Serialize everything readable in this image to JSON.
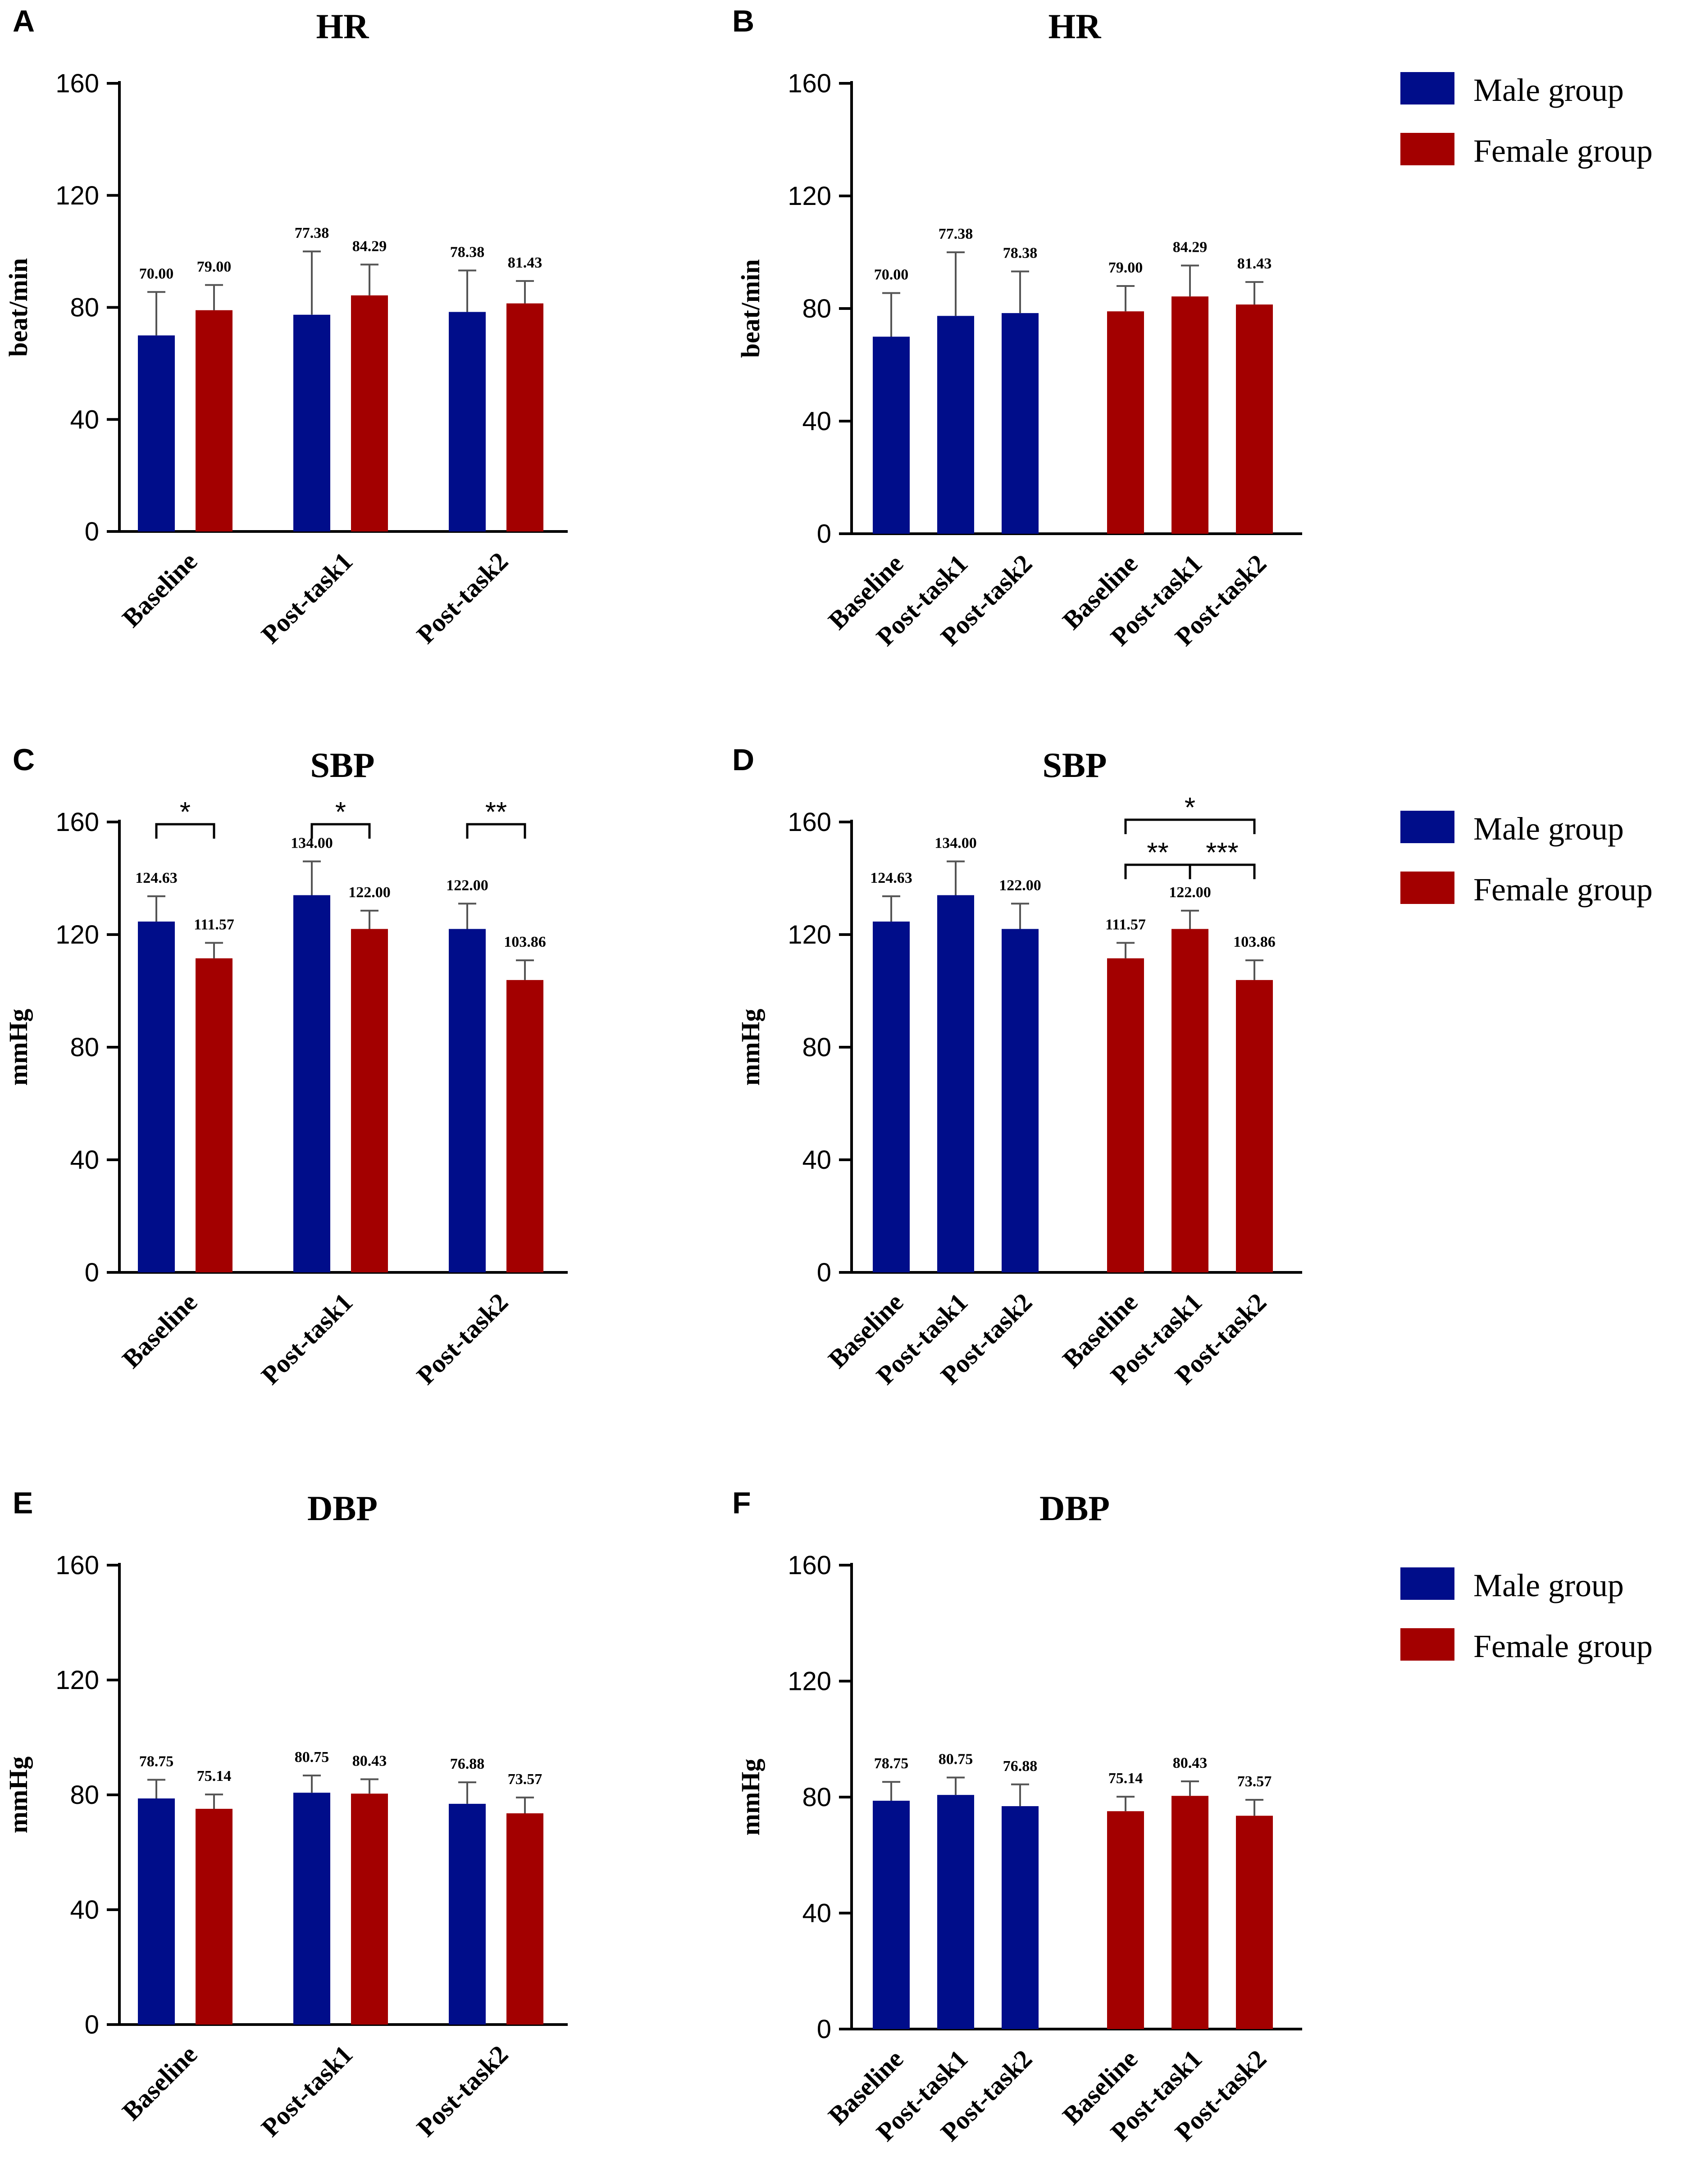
{
  "colors": {
    "male": "#000d8a",
    "female": "#a30000"
  },
  "legend": {
    "male": "Male group",
    "female": "Female group"
  },
  "chart_data": [
    {
      "id": "A",
      "panel_label": "A",
      "title": "HR",
      "type": "bar",
      "layout": "grouped",
      "ylabel": "beat/min",
      "ylim": [
        0,
        160
      ],
      "yticks": [
        0,
        40,
        80,
        120,
        160
      ],
      "categories": [
        "Baseline",
        "Post-task1",
        "Post-task2"
      ],
      "series": [
        {
          "name": "Male group",
          "values": [
            70.0,
            77.38,
            78.38
          ],
          "errors": [
            15.5,
            22.6,
            14.8
          ],
          "labels": [
            "70.00",
            "77.38",
            "78.38"
          ]
        },
        {
          "name": "Female group",
          "values": [
            79.0,
            84.29,
            81.43
          ],
          "errors": [
            9.0,
            11.0,
            8.0
          ],
          "labels": [
            "79.00",
            "84.29",
            "81.43"
          ]
        }
      ],
      "brackets": []
    },
    {
      "id": "B",
      "panel_label": "B",
      "title": "HR",
      "type": "bar",
      "layout": "by-group",
      "ylabel": "beat/min",
      "ylim": [
        0,
        160
      ],
      "yticks": [
        0,
        40,
        80,
        120,
        160
      ],
      "categories": [
        "Baseline",
        "Post-task1",
        "Post-task2"
      ],
      "series": [
        {
          "name": "Male group",
          "values": [
            70.0,
            77.38,
            78.38
          ],
          "errors": [
            15.5,
            22.6,
            14.8
          ],
          "labels": [
            "70.00",
            "77.38",
            "78.38"
          ]
        },
        {
          "name": "Female group",
          "values": [
            79.0,
            84.29,
            81.43
          ],
          "errors": [
            9.0,
            11.0,
            8.0
          ],
          "labels": [
            "79.00",
            "84.29",
            "81.43"
          ]
        }
      ],
      "brackets": []
    },
    {
      "id": "C",
      "panel_label": "C",
      "title": "SBP",
      "type": "bar",
      "layout": "grouped",
      "ylabel": "mmHg",
      "ylim": [
        0,
        160
      ],
      "yticks": [
        0,
        40,
        80,
        120,
        160
      ],
      "categories": [
        "Baseline",
        "Post-task1",
        "Post-task2"
      ],
      "series": [
        {
          "name": "Male group",
          "values": [
            124.63,
            134.0,
            122.0
          ],
          "errors": [
            9.0,
            12.0,
            9.0
          ],
          "labels": [
            "124.63",
            "134.00",
            "122.00"
          ]
        },
        {
          "name": "Female group",
          "values": [
            111.57,
            122.0,
            103.86
          ],
          "errors": [
            5.5,
            6.5,
            7.0
          ],
          "labels": [
            "111.57",
            "122.00",
            "103.86"
          ]
        }
      ],
      "brackets": [
        {
          "from": [
            0,
            0
          ],
          "to": [
            1,
            0
          ],
          "text": "*",
          "level": 0
        },
        {
          "from": [
            0,
            1
          ],
          "to": [
            1,
            1
          ],
          "text": "*",
          "level": 0
        },
        {
          "from": [
            0,
            2
          ],
          "to": [
            1,
            2
          ],
          "text": "**",
          "level": 0
        }
      ]
    },
    {
      "id": "D",
      "panel_label": "D",
      "title": "SBP",
      "type": "bar",
      "layout": "by-group",
      "ylabel": "mmHg",
      "ylim": [
        0,
        160
      ],
      "yticks": [
        0,
        40,
        80,
        120,
        160
      ],
      "categories": [
        "Baseline",
        "Post-task1",
        "Post-task2"
      ],
      "series": [
        {
          "name": "Male group",
          "values": [
            124.63,
            134.0,
            122.0
          ],
          "errors": [
            9.0,
            12.0,
            9.0
          ],
          "labels": [
            "124.63",
            "134.00",
            "122.00"
          ]
        },
        {
          "name": "Female group",
          "values": [
            111.57,
            122.0,
            103.86
          ],
          "errors": [
            5.5,
            6.5,
            7.0
          ],
          "labels": [
            "111.57",
            "122.00",
            "103.86"
          ]
        }
      ],
      "brackets": [
        {
          "from": [
            1,
            0
          ],
          "to": [
            1,
            2
          ],
          "text": "*",
          "level": 1
        },
        {
          "from": [
            1,
            0
          ],
          "to": [
            1,
            1
          ],
          "text": "**",
          "level": 0
        },
        {
          "from": [
            1,
            1
          ],
          "to": [
            1,
            2
          ],
          "text": "***",
          "level": 0
        }
      ]
    },
    {
      "id": "E",
      "panel_label": "E",
      "title": "DBP",
      "type": "bar",
      "layout": "grouped",
      "ylabel": "mmHg",
      "ylim": [
        0,
        160
      ],
      "yticks": [
        0,
        40,
        80,
        120,
        160
      ],
      "categories": [
        "Baseline",
        "Post-task1",
        "Post-task2"
      ],
      "series": [
        {
          "name": "Male group",
          "values": [
            78.75,
            80.75,
            76.88
          ],
          "errors": [
            6.5,
            6.0,
            7.5
          ],
          "labels": [
            "78.75",
            "80.75",
            "76.88"
          ]
        },
        {
          "name": "Female group",
          "values": [
            75.14,
            80.43,
            73.57
          ],
          "errors": [
            5.0,
            5.0,
            5.5
          ],
          "labels": [
            "75.14",
            "80.43",
            "73.57"
          ]
        }
      ],
      "brackets": []
    },
    {
      "id": "F",
      "panel_label": "F",
      "title": "DBP",
      "type": "bar",
      "layout": "by-group",
      "ylabel": "mmHg",
      "ylim": [
        0,
        160
      ],
      "yticks": [
        0,
        40,
        80,
        120,
        160
      ],
      "categories": [
        "Baseline",
        "Post-task1",
        "Post-task2"
      ],
      "series": [
        {
          "name": "Male group",
          "values": [
            78.75,
            80.75,
            76.88
          ],
          "errors": [
            6.5,
            6.0,
            7.5
          ],
          "labels": [
            "78.75",
            "80.75",
            "76.88"
          ]
        },
        {
          "name": "Female group",
          "values": [
            75.14,
            80.43,
            73.57
          ],
          "errors": [
            5.0,
            5.0,
            5.5
          ],
          "labels": [
            "75.14",
            "80.43",
            "73.57"
          ]
        }
      ],
      "brackets": []
    }
  ]
}
